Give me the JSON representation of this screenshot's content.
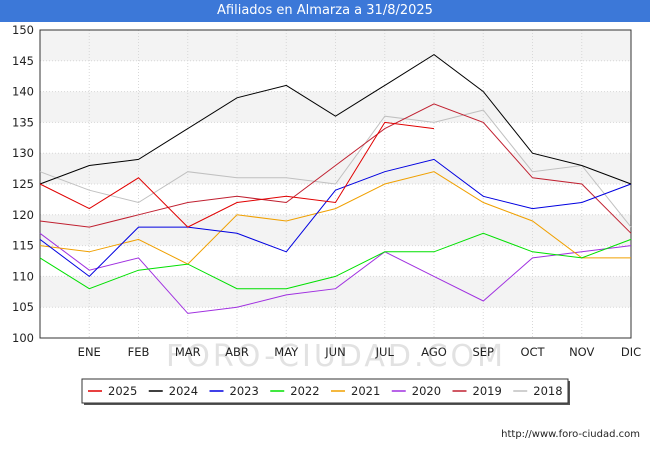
{
  "title": "Afiliados en Almarza a 31/8/2025",
  "watermark": "FORO-CIUDAD.COM",
  "source": "http://www.foro-ciudad.com",
  "chart_data": {
    "type": "line",
    "categories": [
      "",
      "ENE",
      "FEB",
      "MAR",
      "ABR",
      "MAY",
      "JUN",
      "JUL",
      "AGO",
      "SEP",
      "OCT",
      "NOV",
      "DIC"
    ],
    "ylim": [
      100,
      150
    ],
    "yticks": [
      100,
      105,
      110,
      115,
      120,
      125,
      130,
      135,
      140,
      145,
      150
    ],
    "grid": true,
    "legend_position": "bottom",
    "series": [
      {
        "name": "2025",
        "color": "#e00000",
        "values": [
          125,
          121,
          126,
          118,
          122,
          123,
          122,
          135,
          134,
          null,
          null,
          null,
          null
        ]
      },
      {
        "name": "2024",
        "color": "#000000",
        "values": [
          125,
          128,
          129,
          134,
          139,
          141,
          136,
          141,
          146,
          140,
          130,
          128,
          125
        ]
      },
      {
        "name": "2023",
        "color": "#0000e0",
        "values": [
          116,
          110,
          118,
          118,
          117,
          114,
          124,
          127,
          129,
          123,
          121,
          122,
          125
        ]
      },
      {
        "name": "2022",
        "color": "#00e000",
        "values": [
          113,
          108,
          111,
          112,
          108,
          108,
          110,
          114,
          114,
          117,
          114,
          113,
          116
        ]
      },
      {
        "name": "2021",
        "color": "#f0a000",
        "values": [
          115,
          114,
          116,
          112,
          120,
          119,
          121,
          125,
          127,
          122,
          119,
          113,
          113
        ]
      },
      {
        "name": "2020",
        "color": "#a030e0",
        "values": [
          117,
          111,
          113,
          104,
          105,
          107,
          108,
          114,
          110,
          106,
          113,
          114,
          115
        ]
      },
      {
        "name": "2019",
        "color": "#c02030",
        "values": [
          119,
          118,
          120,
          122,
          123,
          122,
          128,
          134,
          138,
          135,
          126,
          125,
          117
        ]
      },
      {
        "name": "2018",
        "color": "#c0c0c0",
        "values": [
          127,
          124,
          122,
          127,
          126,
          126,
          125,
          136,
          135,
          137,
          127,
          128,
          118
        ]
      }
    ]
  }
}
